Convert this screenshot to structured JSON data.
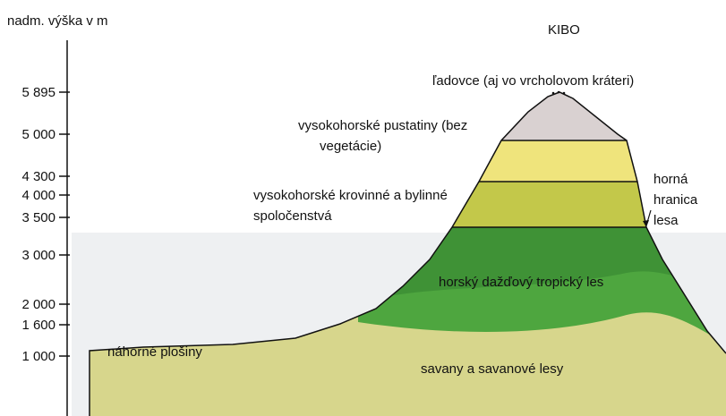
{
  "axis": {
    "label": "nadm. výška v m",
    "ticks": [
      "5 895",
      "5 000",
      "4 300",
      "4 000",
      "3 500",
      "3 000",
      "2 000",
      "1 600",
      "1 000"
    ]
  },
  "peak": "KIBO",
  "zones": {
    "glaciers": [
      "ľadovce (aj vo vrcholovom kráteri)"
    ],
    "alpine_desert": [
      "vysokohorské pustatiny (bez",
      "vegetácie)"
    ],
    "heath": [
      "vysokohorské  krovinné  a  bylinné",
      "spoločenstvá"
    ],
    "treeline": [
      "horná",
      "hranica",
      "lesa"
    ],
    "rainforest": [
      "horský dažďový tropický les"
    ],
    "plateau": [
      "náhorné plošiny"
    ],
    "savanna": [
      "savany a savanové lesy"
    ]
  }
}
